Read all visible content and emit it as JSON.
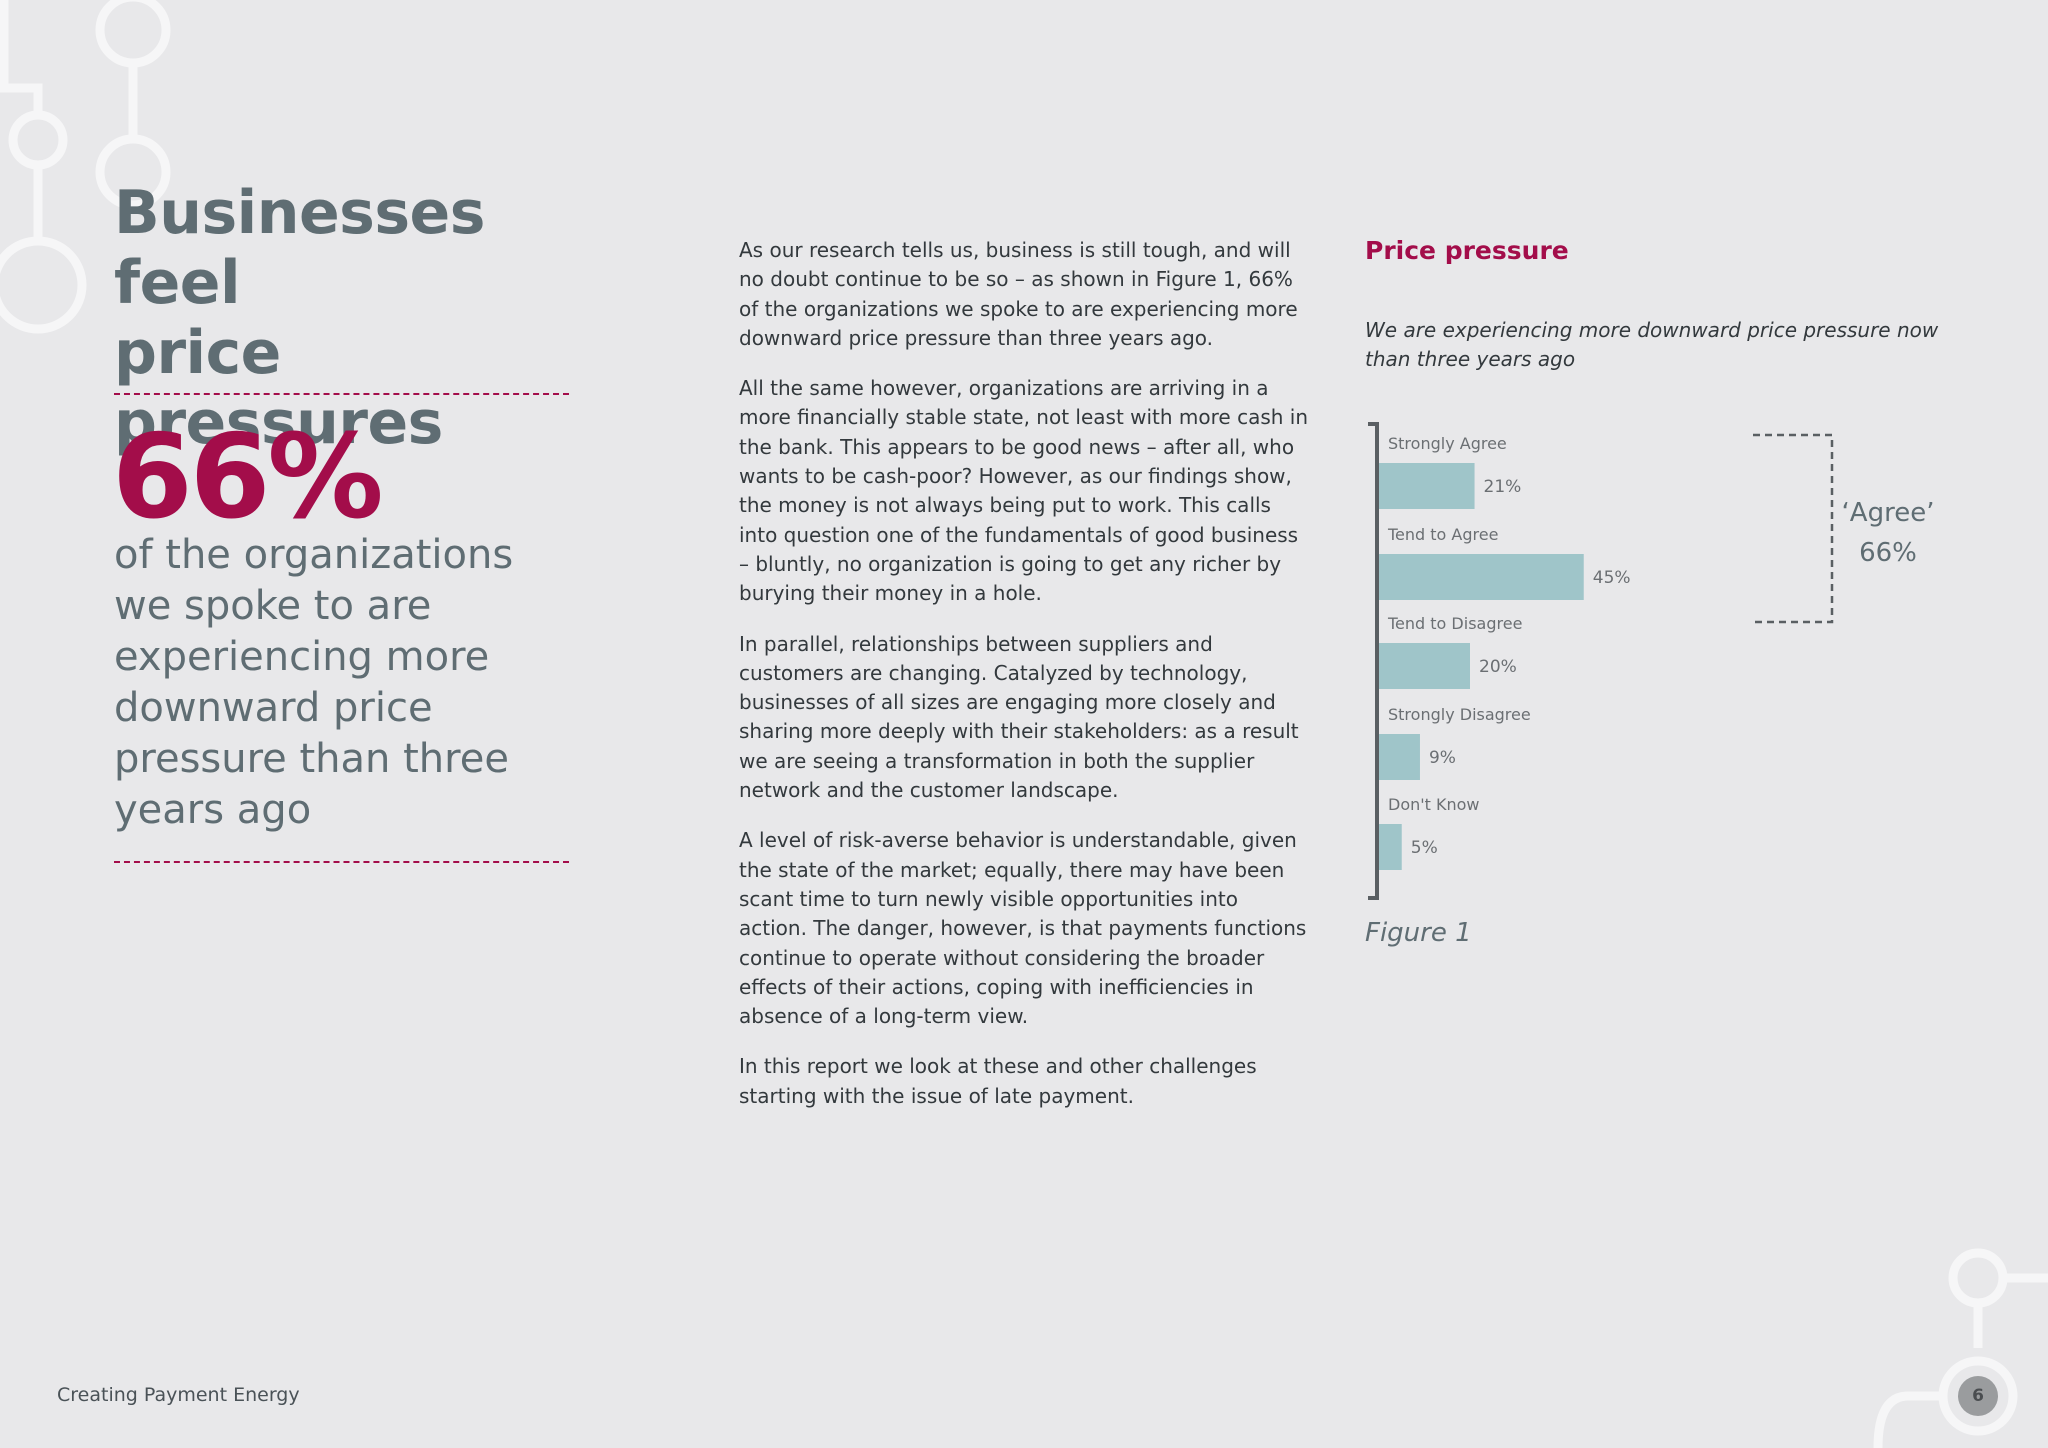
{
  "headline": {
    "line1": "Businesses feel",
    "line2": "price pressures"
  },
  "stat": {
    "value": "66%",
    "description": "of the organizations we spoke to are experiencing more downward price pressure than three years ago"
  },
  "body": {
    "paragraphs": [
      "As our research tells us, business is still tough, and will no doubt continue to be so – as shown in Figure 1, 66% of the organizations we spoke to are experiencing more downward price pressure than three years ago.",
      "All the same however, organizations are arriving in a more financially stable state, not least with more cash in the bank. This appears to be good news – after all, who wants to be cash-poor? However, as our findings show, the money is not always being put to work. This calls into question one of the fundamentals of good business – bluntly, no organization is going to get any richer by burying their money in a hole.",
      "In parallel, relationships between suppliers and customers are changing. Catalyzed by technology, businesses of all sizes are engaging more closely and sharing more deeply with their stakeholders: as a result we are seeing a transformation in both the supplier network and the customer landscape.",
      "A level of risk-averse behavior is understandable, given the state of the market; equally, there may have been scant time to turn newly visible opportunities into action. The danger, however, is that payments functions continue to operate without considering the broader effects of their actions, coping with inefficiencies in absence of a long-term view.",
      "In this report we look at these and other challenges starting with the issue of late payment."
    ]
  },
  "chart_data": {
    "type": "bar",
    "orientation": "horizontal",
    "title": "Price pressure",
    "subtitle": "We are experiencing more downward price pressure now than three years ago",
    "categories": [
      "Strongly Agree",
      "Tend to Agree",
      "Tend to Disagree",
      "Strongly Disagree",
      "Don't Know"
    ],
    "values": [
      21,
      45,
      20,
      9,
      5
    ],
    "value_labels": [
      "21%",
      "45%",
      "20%",
      "9%",
      "5%"
    ],
    "bar_color": "#9fc5c9",
    "grid": false,
    "bracket_annotation": {
      "label": "‘Agree’",
      "value": "66%",
      "spans": [
        "Strongly Agree",
        "Tend to Agree"
      ]
    },
    "caption": "Figure 1"
  },
  "footer": {
    "title": "Creating Payment Energy",
    "page_number": "6"
  },
  "colors": {
    "accent": "#a30d4a",
    "headline": "#5f6d73",
    "background": "#e8e8ea",
    "bar": "#9fc5c9"
  }
}
